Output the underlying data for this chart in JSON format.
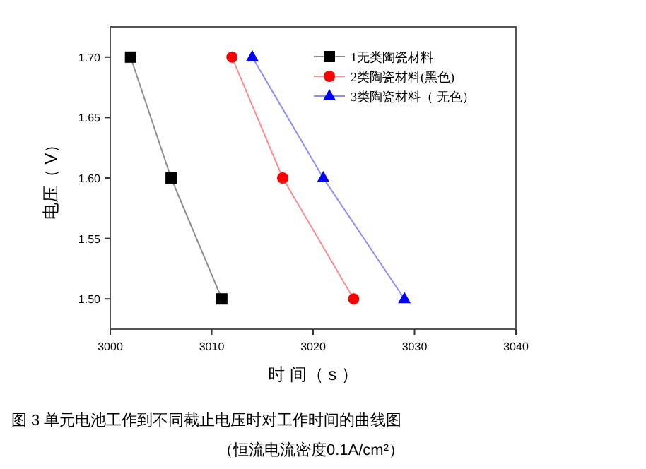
{
  "chart_data": {
    "type": "line",
    "xlabel": "时 间（ s ）",
    "ylabel": "电压（ V）",
    "annotations": [
      "图 3  单元电池工作到不同截止电压时对工作时间的曲线图",
      "（恒流电流密度0.1A/cm²）"
    ],
    "xlim": [
      3000,
      3040
    ],
    "xticks": [
      3000,
      3010,
      3020,
      3030,
      3040
    ],
    "ylim": [
      1.475,
      1.725
    ],
    "yticks": [
      {
        "value": 1.5,
        "label": "1.50"
      },
      {
        "value": 1.55,
        "label": "1.55"
      },
      {
        "value": 1.6,
        "label": "1.60"
      },
      {
        "value": 1.65,
        "label": "1.65"
      },
      {
        "value": 1.7,
        "label": "1.70"
      }
    ],
    "legend": "top right",
    "grid": false,
    "series": [
      {
        "name": "1无类陶瓷材料",
        "color": "#000000",
        "marker": "square",
        "x": [
          3002,
          3006,
          3011
        ],
        "values": [
          1.7,
          1.6,
          1.5
        ]
      },
      {
        "name": "2类陶瓷材料(黑色)",
        "color": "#ff0000",
        "marker": "circle",
        "x": [
          3012,
          3017,
          3024
        ],
        "values": [
          1.7,
          1.6,
          1.5
        ]
      },
      {
        "name": "3类陶瓷材料（ 无色）",
        "color": "#0000ff",
        "marker": "triangle",
        "x": [
          3014,
          3021,
          3029
        ],
        "values": [
          1.7,
          1.6,
          1.5
        ]
      }
    ]
  }
}
